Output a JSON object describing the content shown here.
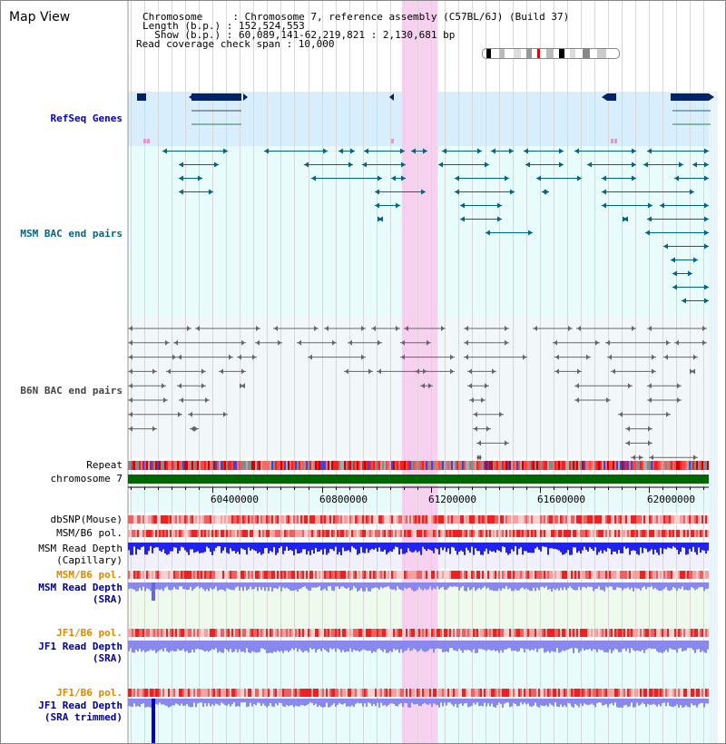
{
  "header": {
    "title": "Map View",
    "lines": [
      "Chromosome     : Chromosome 7, reference assembly (C57BL/6J) (Build 37)",
      "Length (b.p.) : 152,524,553",
      "  Show (b.p.) : 60,089,141-62,219,821 : 2,130,681 bp",
      "Read coverage check span : 10,000"
    ]
  },
  "tracks": {
    "refseq": "RefSeq Genes",
    "msm_bac": "MSM BAC end pairs",
    "b6n_bac": "B6N BAC end pairs",
    "repeat": "Repeat",
    "chromosome": "chromosome 7",
    "dbsnp": "dbSNP(Mouse)",
    "msm_b6_pol_1": "MSM/B6 pol.",
    "msm_depth_cap_1": "MSM Read Depth",
    "msm_depth_cap_2": "(Capillary)",
    "msm_b6_pol_2": "MSM/B6 pol.",
    "msm_depth_sra_1": "MSM Read Depth",
    "msm_depth_sra_2": "(SRA)",
    "jf1_b6_pol_1": "JF1/B6 pol.",
    "jf1_depth_sra_1": "JF1 Read Depth",
    "jf1_depth_sra_2": "(SRA)",
    "jf1_b6_pol_2": "JF1/B6 pol.",
    "jf1_depth_trim_1": "JF1 Read Depth",
    "jf1_depth_trim_2": "(SRA trimmed)"
  },
  "axis": {
    "range": [
      60089141,
      62219821
    ],
    "ticks": [
      "60400000",
      "60800000",
      "61200000",
      "61600000",
      "62000000"
    ]
  },
  "highlight": {
    "start": 61094000,
    "end": 61226000
  },
  "colors": {
    "refseq_label": "#0000cc",
    "msm_label": "#006688",
    "b6n_label": "#444444",
    "pol_label": "#dd8800",
    "depth_label": "#000099",
    "highlight": "#f8d0f0",
    "refseq_bg": "#d8eefc",
    "bac_bg": "#e8fcfc",
    "chromosome": "#006600",
    "gene": "#002266",
    "msm_feature": "#006688",
    "b6n_feature": "#666666",
    "depth_bar": "#2222ee"
  }
}
